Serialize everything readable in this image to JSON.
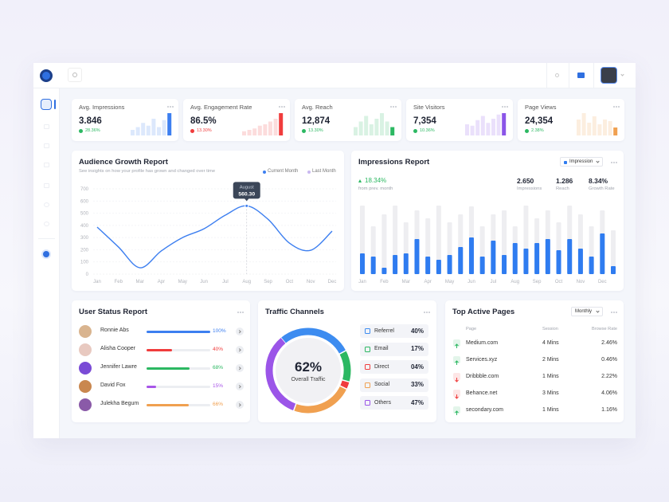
{
  "kpis": [
    {
      "title": "Avg. Impressions",
      "value": "3.846",
      "change": "28.36%",
      "trend": "up",
      "color": "#3d7ff0",
      "bars": [
        20,
        30,
        45,
        35,
        60,
        30,
        55,
        80
      ]
    },
    {
      "title": "Avg. Engagement Rate",
      "value": "86.5%",
      "change": "13.30%",
      "trend": "down",
      "color": "#f03c3c",
      "bars": [
        15,
        20,
        25,
        35,
        40,
        50,
        60,
        80
      ]
    },
    {
      "title": "Avg. Reach",
      "value": "12,874",
      "change": "13.30%",
      "trend": "up",
      "color": "#2cb862",
      "bars": [
        30,
        50,
        70,
        40,
        60,
        80,
        50,
        30
      ]
    },
    {
      "title": "Site Visitors",
      "value": "7,354",
      "change": "10.36%",
      "trend": "up",
      "color": "#8a55e8",
      "bars": [
        40,
        35,
        55,
        70,
        45,
        60,
        75,
        80
      ]
    },
    {
      "title": "Page Views",
      "value": "24,354",
      "change": "2.38%",
      "trend": "up",
      "color": "#f0a050",
      "bars": [
        50,
        70,
        40,
        60,
        35,
        50,
        45,
        25
      ]
    }
  ],
  "audience": {
    "title": "Audience Growth Report",
    "subtitle": "See insights on how your profile has grown and changed over time",
    "legend": [
      {
        "name": "Current Month",
        "color": "#3d7ff0"
      },
      {
        "name": "Last Month",
        "color": "#c9b8f0"
      }
    ],
    "ylim": [
      0,
      700
    ],
    "yticks": [
      0,
      100,
      200,
      300,
      400,
      500,
      600,
      700
    ],
    "categories": [
      "Jan",
      "Feb",
      "Mar",
      "Apr",
      "May",
      "Jun",
      "Jul",
      "Aug",
      "Sep",
      "Oct",
      "Nov",
      "Dec"
    ],
    "values": [
      386,
      222,
      52,
      190,
      300,
      372,
      484,
      560.3,
      450,
      255,
      196,
      353
    ],
    "color": "#3d7ff0",
    "tooltip": {
      "title": "August",
      "value": "560.30"
    }
  },
  "impressions": {
    "title": "Impressions Report",
    "dropdown": "Impression",
    "change": "18.34%",
    "change_note": "from prev. month",
    "stats": [
      {
        "value": "2.650",
        "label": "Impressions"
      },
      {
        "value": "1.286",
        "label": "Reach"
      },
      {
        "value": "8.34%",
        "label": "Growth Rate"
      }
    ],
    "categories": [
      "Jan",
      "Feb",
      "Mar",
      "Apr",
      "May",
      "Jun",
      "Jul",
      "Aug",
      "Sep",
      "Oct",
      "Nov",
      "Dec"
    ],
    "values": [
      26,
      22,
      8,
      24,
      26,
      44,
      22,
      18,
      24,
      34,
      46,
      22,
      42,
      24,
      39,
      32,
      39,
      44,
      30,
      44,
      32,
      22,
      51,
      10
    ],
    "background": [
      86,
      60,
      75,
      86,
      65,
      80,
      70,
      86,
      65,
      75,
      85,
      60,
      75,
      80,
      60,
      86,
      70,
      80,
      65,
      86,
      75,
      60,
      80,
      55
    ],
    "color": "#2f7cf0"
  },
  "user_status": {
    "title": "User Status Report",
    "users": [
      {
        "name": "Ronnie Abs",
        "value": 100,
        "label": "100%",
        "color": "#3d7ff0"
      },
      {
        "name": "Alisha Cooper",
        "value": 40,
        "label": "40%",
        "color": "#f03c3c"
      },
      {
        "name": "Jennifer Lawre",
        "value": 68,
        "label": "68%",
        "color": "#2cb862"
      },
      {
        "name": "David Fox",
        "value": 15,
        "label": "15%",
        "color": "#a855e8"
      },
      {
        "name": "Julekha Begum",
        "value": 66,
        "label": "66%",
        "color": "#f0a050"
      }
    ]
  },
  "traffic": {
    "title": "Traffic Channels",
    "total": "62%",
    "total_label": "Overall Traffic",
    "channels": [
      {
        "name": "Referrel",
        "value": 40,
        "label": "40%",
        "color": "#3d8cf0"
      },
      {
        "name": "Email",
        "value": 17,
        "label": "17%",
        "color": "#2cb862"
      },
      {
        "name": "Direct",
        "value": 4,
        "label": "04%",
        "color": "#f03c3c"
      },
      {
        "name": "Social",
        "value": 33,
        "label": "33%",
        "color": "#f0a050"
      },
      {
        "name": "Others",
        "value": 47,
        "label": "47%",
        "color": "#9b55e8"
      }
    ]
  },
  "pages": {
    "title": "Top Active Pages",
    "dropdown": "Monthly",
    "columns": [
      "Page",
      "Session",
      "Browse Rate"
    ],
    "rows": [
      {
        "page": "Medium.com",
        "session": "4 Mins",
        "rate": "2.46%",
        "trend": "up"
      },
      {
        "page": "Services.xyz",
        "session": "2 Mins",
        "rate": "0.46%",
        "trend": "up"
      },
      {
        "page": "Dribbble.com",
        "session": "1 Mins",
        "rate": "2.22%",
        "trend": "down"
      },
      {
        "page": "Behance.net",
        "session": "3 Mins",
        "rate": "4.06%",
        "trend": "down"
      },
      {
        "page": "secondary.com",
        "session": "1 Mins",
        "rate": "1.16%",
        "trend": "up"
      }
    ]
  }
}
